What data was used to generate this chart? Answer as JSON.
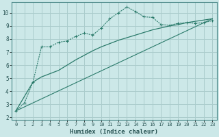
{
  "xlabel": "Humidex (Indice chaleur)",
  "xlim": [
    -0.5,
    23.5
  ],
  "ylim": [
    1.8,
    10.8
  ],
  "xticks": [
    0,
    1,
    2,
    3,
    4,
    5,
    6,
    7,
    8,
    9,
    10,
    11,
    12,
    13,
    14,
    15,
    16,
    17,
    18,
    19,
    20,
    21,
    22,
    23
  ],
  "yticks": [
    2,
    3,
    4,
    5,
    6,
    7,
    8,
    9,
    10
  ],
  "bg_color": "#cce8e8",
  "grid_color": "#aacccc",
  "line_color": "#2a7a6a",
  "line1_x": [
    0,
    1,
    2,
    3,
    4,
    5,
    6,
    7,
    8,
    9,
    10,
    11,
    12,
    13,
    14,
    15,
    16,
    17,
    18,
    19,
    20,
    21,
    22,
    23
  ],
  "line1_y": [
    2.5,
    3.1,
    4.7,
    7.4,
    7.4,
    7.75,
    7.85,
    8.2,
    8.45,
    8.3,
    8.85,
    9.55,
    10.0,
    10.45,
    10.1,
    9.7,
    9.65,
    9.1,
    9.05,
    9.2,
    9.25,
    9.2,
    9.25,
    9.4
  ],
  "line2_x": [
    0,
    2,
    3,
    4,
    5,
    6,
    7,
    8,
    9,
    10,
    11,
    12,
    13,
    14,
    15,
    16,
    17,
    18,
    19,
    20,
    21,
    22,
    23
  ],
  "line2_y": [
    2.5,
    4.7,
    5.1,
    5.35,
    5.6,
    6.0,
    6.4,
    6.75,
    7.1,
    7.4,
    7.65,
    7.9,
    8.1,
    8.3,
    8.5,
    8.7,
    8.85,
    9.0,
    9.1,
    9.25,
    9.35,
    9.45,
    9.55
  ],
  "line3_x": [
    0,
    23
  ],
  "line3_y": [
    2.5,
    9.55
  ]
}
